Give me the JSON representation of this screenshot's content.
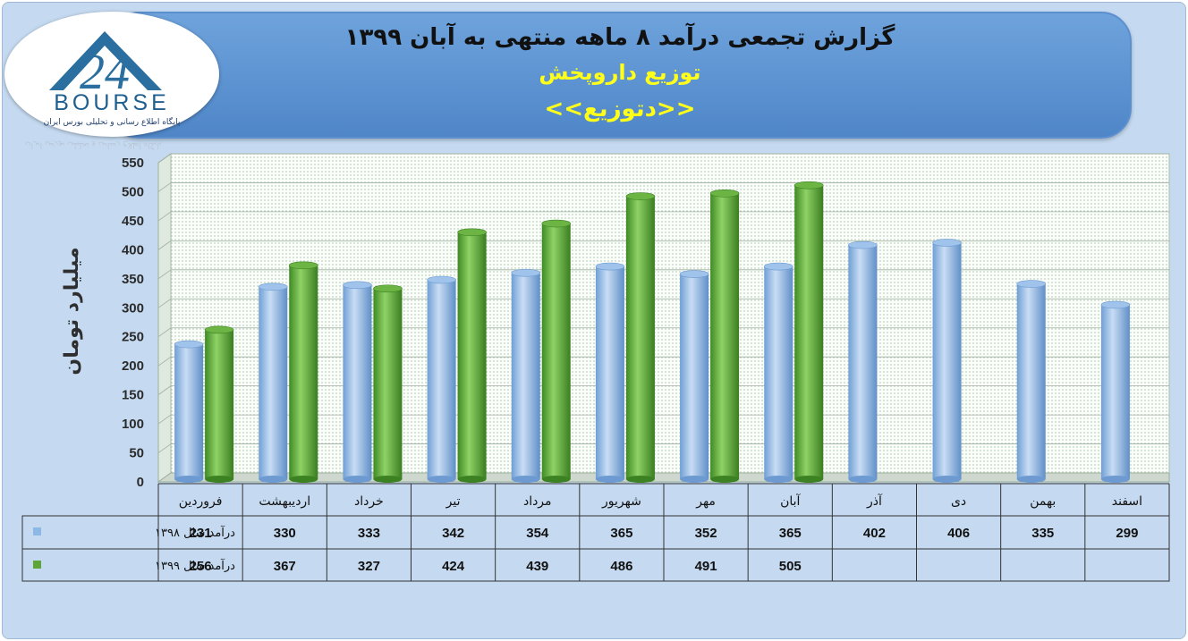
{
  "header": {
    "title": "گزارش تجمعی درآمد ۸ ماهه منتهی به آبان ۱۳۹۹",
    "subtitle": "توزیع داروپخش",
    "ticker": "<<دتوزیع>>"
  },
  "logo": {
    "text": "BOURSE",
    "numerals": "24",
    "tagline": "پایگاه اطلاع رسانی و تحلیلی بورس ایران",
    "colors": {
      "primary": "#2a6f9f"
    }
  },
  "colors": {
    "series_1398": "#8db8e6",
    "series_1399": "#5fa63a",
    "frame": "#c5daf1",
    "banner": "#5b91d0"
  },
  "chart_data": {
    "type": "bar",
    "ylabel": "میلیارد تومان",
    "ylim": [
      0,
      550
    ],
    "yticks": [
      0,
      50,
      100,
      150,
      200,
      250,
      300,
      350,
      400,
      450,
      500,
      550
    ],
    "categories": [
      "فروردین",
      "اردیبهشت",
      "خرداد",
      "تیر",
      "مرداد",
      "شهریور",
      "مهر",
      "آبان",
      "آذر",
      "دی",
      "بهمن",
      "اسفند"
    ],
    "series": [
      {
        "name": "درآمد سال ۱۳۹۸",
        "color": "#8db8e6",
        "values": [
          231,
          330,
          333,
          342,
          354,
          365,
          352,
          365,
          402,
          406,
          335,
          299
        ]
      },
      {
        "name": "درآمد سال ۱۳۹۹",
        "color": "#5fa63a",
        "values": [
          256,
          367,
          327,
          424,
          439,
          486,
          491,
          505,
          null,
          null,
          null,
          null
        ]
      }
    ],
    "grid": true,
    "legend": "data-table"
  }
}
